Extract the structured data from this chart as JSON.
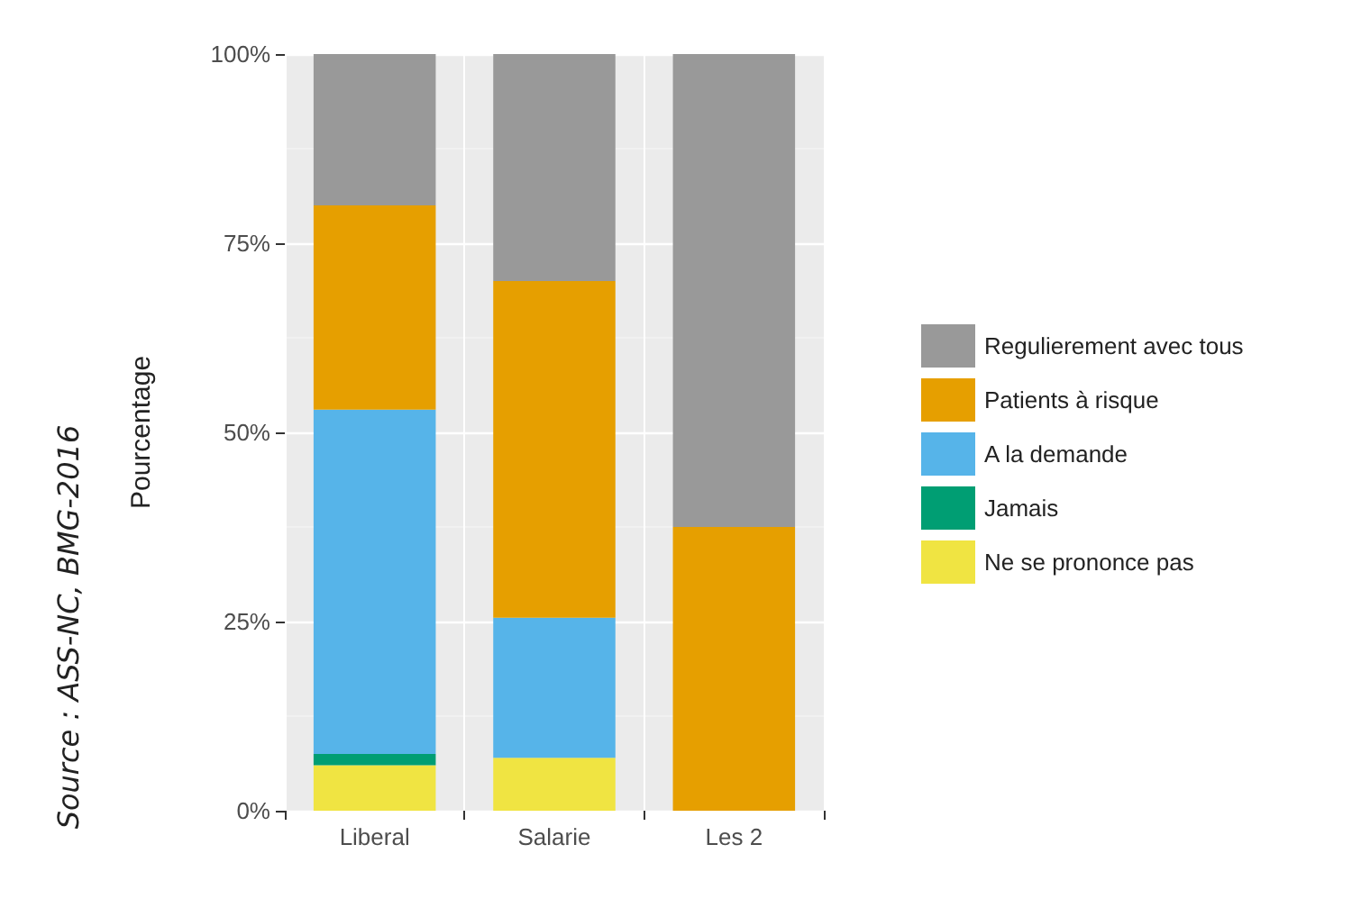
{
  "chart_data": {
    "type": "bar",
    "stacked": true,
    "ylabel": "Pourcentage",
    "categories": [
      "Liberal",
      "Salarie",
      "Les 2"
    ],
    "series": [
      {
        "name": "Ne se prononce pas",
        "color": "#f0e442",
        "values": [
          6,
          7,
          0
        ]
      },
      {
        "name": "Jamais",
        "color": "#009e73",
        "values": [
          1.5,
          0,
          0
        ]
      },
      {
        "name": "A la demande",
        "color": "#56b4e9",
        "values": [
          45.5,
          18.5,
          0
        ]
      },
      {
        "name": "Patients à risque",
        "color": "#e69f00",
        "values": [
          27,
          44.5,
          37.5
        ]
      },
      {
        "name": "Regulierement avec tous",
        "color": "#999999",
        "values": [
          20,
          30,
          62.5
        ]
      }
    ],
    "ylim": [
      0,
      100
    ],
    "yticks": [
      {
        "value": 0,
        "label": "0%"
      },
      {
        "value": 25,
        "label": "25%"
      },
      {
        "value": 50,
        "label": "50%"
      },
      {
        "value": 75,
        "label": "75%"
      },
      {
        "value": 100,
        "label": "100%"
      }
    ],
    "grid": true,
    "legend": "right",
    "annotations": [
      "Source : ASS-NC, BMG-2016"
    ]
  }
}
